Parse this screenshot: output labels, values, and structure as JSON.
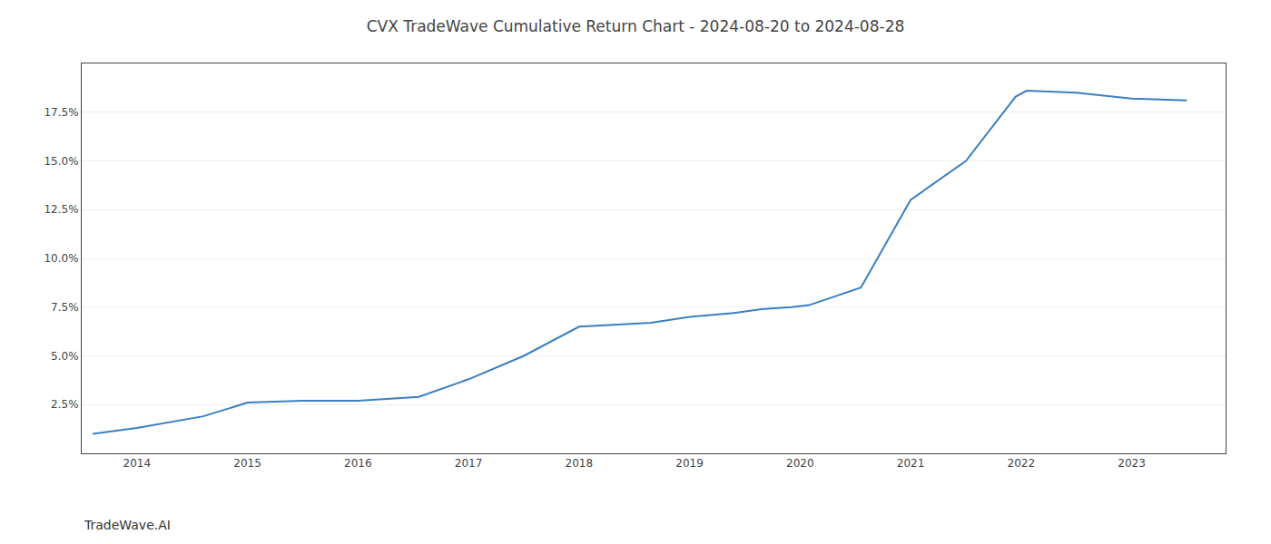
{
  "chart_data": {
    "type": "line",
    "title": "CVX TradeWave Cumulative Return Chart - 2024-08-20 to 2024-08-28",
    "annotations": [
      "TradeWave.AI"
    ],
    "x": [
      2013.6,
      2014.0,
      2014.6,
      2015.0,
      2015.5,
      2016.0,
      2016.55,
      2017.0,
      2017.5,
      2018.0,
      2018.35,
      2018.65,
      2019.0,
      2019.4,
      2019.65,
      2019.92,
      2020.08,
      2020.55,
      2021.0,
      2021.5,
      2021.95,
      2022.05,
      2022.5,
      2023.0,
      2023.5
    ],
    "values": [
      0.01,
      0.013,
      0.019,
      0.026,
      0.027,
      0.027,
      0.029,
      0.038,
      0.05,
      0.065,
      0.066,
      0.067,
      0.07,
      0.072,
      0.074,
      0.075,
      0.076,
      0.085,
      0.13,
      0.15,
      0.183,
      0.186,
      0.185,
      0.182,
      0.181
    ],
    "color": "#3a7fc1",
    "xlim": [
      2013.5,
      2023.85
    ],
    "xticks": [
      2014,
      2015,
      2016,
      2017,
      2018,
      2019,
      2020,
      2021,
      2022,
      2023
    ],
    "ylim": [
      0.0,
      0.2
    ],
    "yticks": [
      {
        "value": 0.025,
        "label": "2.5%"
      },
      {
        "value": 0.05,
        "label": "5.0%"
      },
      {
        "value": 0.075,
        "label": "7.5%"
      },
      {
        "value": 0.1,
        "label": "10.0%"
      },
      {
        "value": 0.125,
        "label": "12.5%"
      },
      {
        "value": 0.15,
        "label": "15.0%"
      },
      {
        "value": 0.175,
        "label": "17.5%"
      }
    ],
    "grid": "y"
  }
}
